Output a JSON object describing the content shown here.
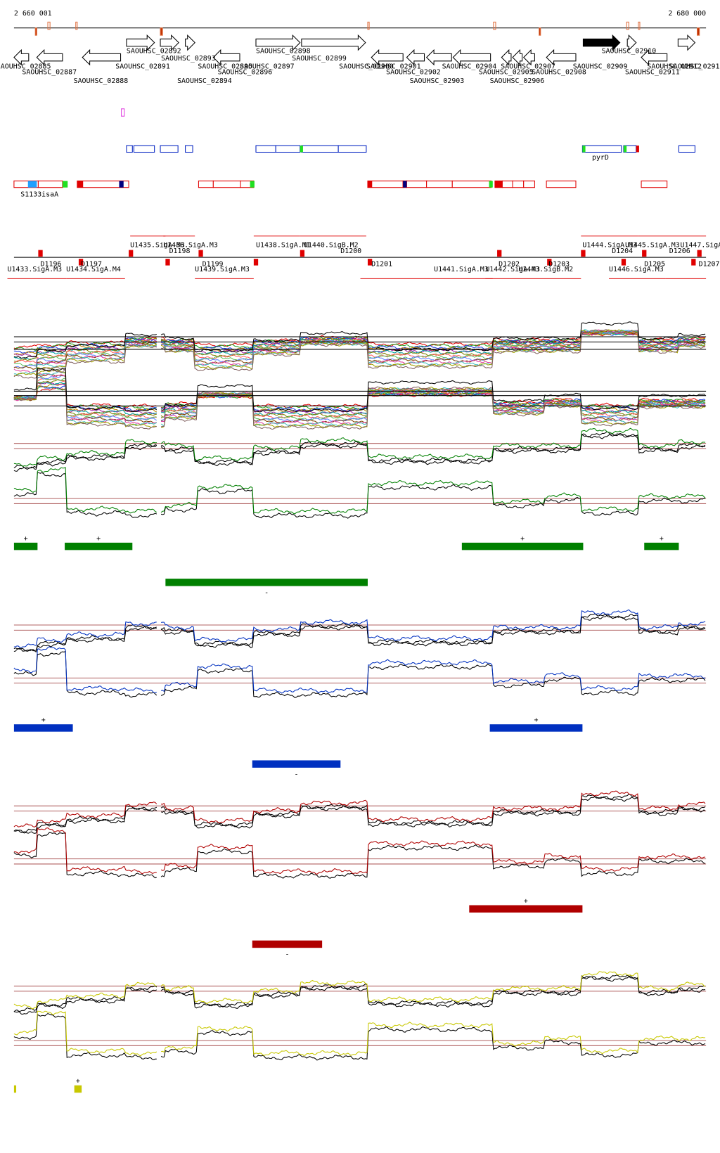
{
  "header": {
    "start_coord": "2 660 001",
    "end_coord": "2 680 000"
  },
  "genes": [
    "SAOUHSC_02885",
    "SAOUHSC_02887",
    "SAOUHSC_02888",
    "SAOUHSC_02891",
    "SAOUHSC_02892",
    "SAOUHSC_02893",
    "SAOUHSC_02894",
    "SAOUHSC_02895",
    "SAOUHSC_02896",
    "SAOUHSC_02897",
    "SAOUHSC_02898",
    "SAOUHSC_02899",
    "SAOUHSC_02900",
    "SAOUHSC_02901",
    "SAOUHSC_02902",
    "SAOUHSC_02903",
    "SAOUHSC_02904",
    "SAOUHSC_02905",
    "SAOUHSC_02906",
    "SAOUHSC_02907",
    "SAOUHSC_02908",
    "SAOUHSC_02909",
    "SAOUHSC_02910",
    "SAOUHSC_02911",
    "SAOUHSC_02912",
    "SAOUHSC_02913"
  ],
  "features": {
    "isaA": "S1133isaA",
    "pyrD": "pyrD"
  },
  "promoters": [
    "U1433.SigA.M3",
    "D1196",
    "U1434.SigA.M4",
    "D1197",
    "U1435.SigA.M3",
    "U1436.SigA.M3",
    "D1198",
    "D1199",
    "U1439.SigA.M3",
    "U1438.SigA.M1",
    "U1440.SigB.M2",
    "D1200",
    "D1201",
    "U1441.SigA.M3",
    "U1442.SigA.M3",
    "U1443.SigB.M2",
    "D1202",
    "D1203",
    "U1444.SigA.M3",
    "U1445.SigA.M3",
    "D1204",
    "D1205",
    "D1206",
    "U1447.SigA.M3",
    "U1446.SigA.M3",
    "D1207"
  ],
  "panels": [
    {
      "signs": [
        "+",
        "+",
        "+",
        "+",
        "-"
      ]
    },
    {
      "signs": [
        "+",
        "+",
        "-"
      ]
    },
    {
      "signs": [
        "+",
        "-"
      ]
    },
    {
      "signs": [
        "+"
      ]
    }
  ]
}
